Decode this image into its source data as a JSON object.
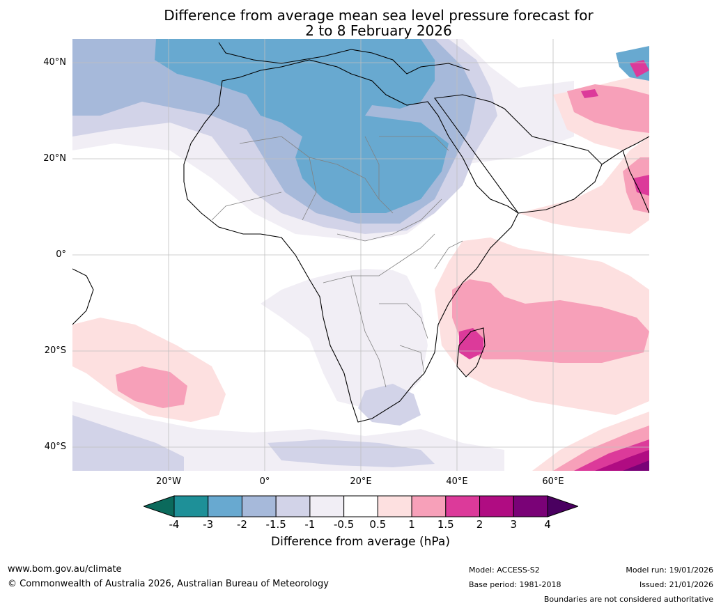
{
  "title": {
    "line1": "Difference from average mean sea level pressure forecast for",
    "line2": "2 to 8 February 2026"
  },
  "axes": {
    "lat_labels": [
      "40°N",
      "20°N",
      "0°",
      "20°S",
      "40°S"
    ],
    "lon_labels": [
      "20°W",
      "0°",
      "20°E",
      "40°E",
      "60°E"
    ]
  },
  "colorbar": {
    "ticks": [
      "-4",
      "-3",
      "-2",
      "-1.5",
      "-1",
      "-0.5",
      "0.5",
      "1",
      "1.5",
      "2",
      "3",
      "4"
    ],
    "colors": [
      "#0b6a5c",
      "#1e9098",
      "#68a9d0",
      "#a6b9da",
      "#d2d3e8",
      "#f1eef5",
      "#ffffff",
      "#fde0e0",
      "#f7a0b9",
      "#dc3a9a",
      "#b00c82",
      "#7a0277",
      "#4a0060"
    ],
    "label": "Difference from average (hPa)"
  },
  "footer": {
    "website": "www.bom.gov.au/climate",
    "copyright": "© Commonwealth of Australia 2026, Australian Bureau of Meteorology",
    "model": "Model: ACCESS-S2",
    "base_period": "Base period: 1981-2018",
    "model_run": "Model run: 19/01/2026",
    "issued": "Issued: 21/01/2026",
    "disclaimer": "Boundaries are not considered authoritative"
  }
}
